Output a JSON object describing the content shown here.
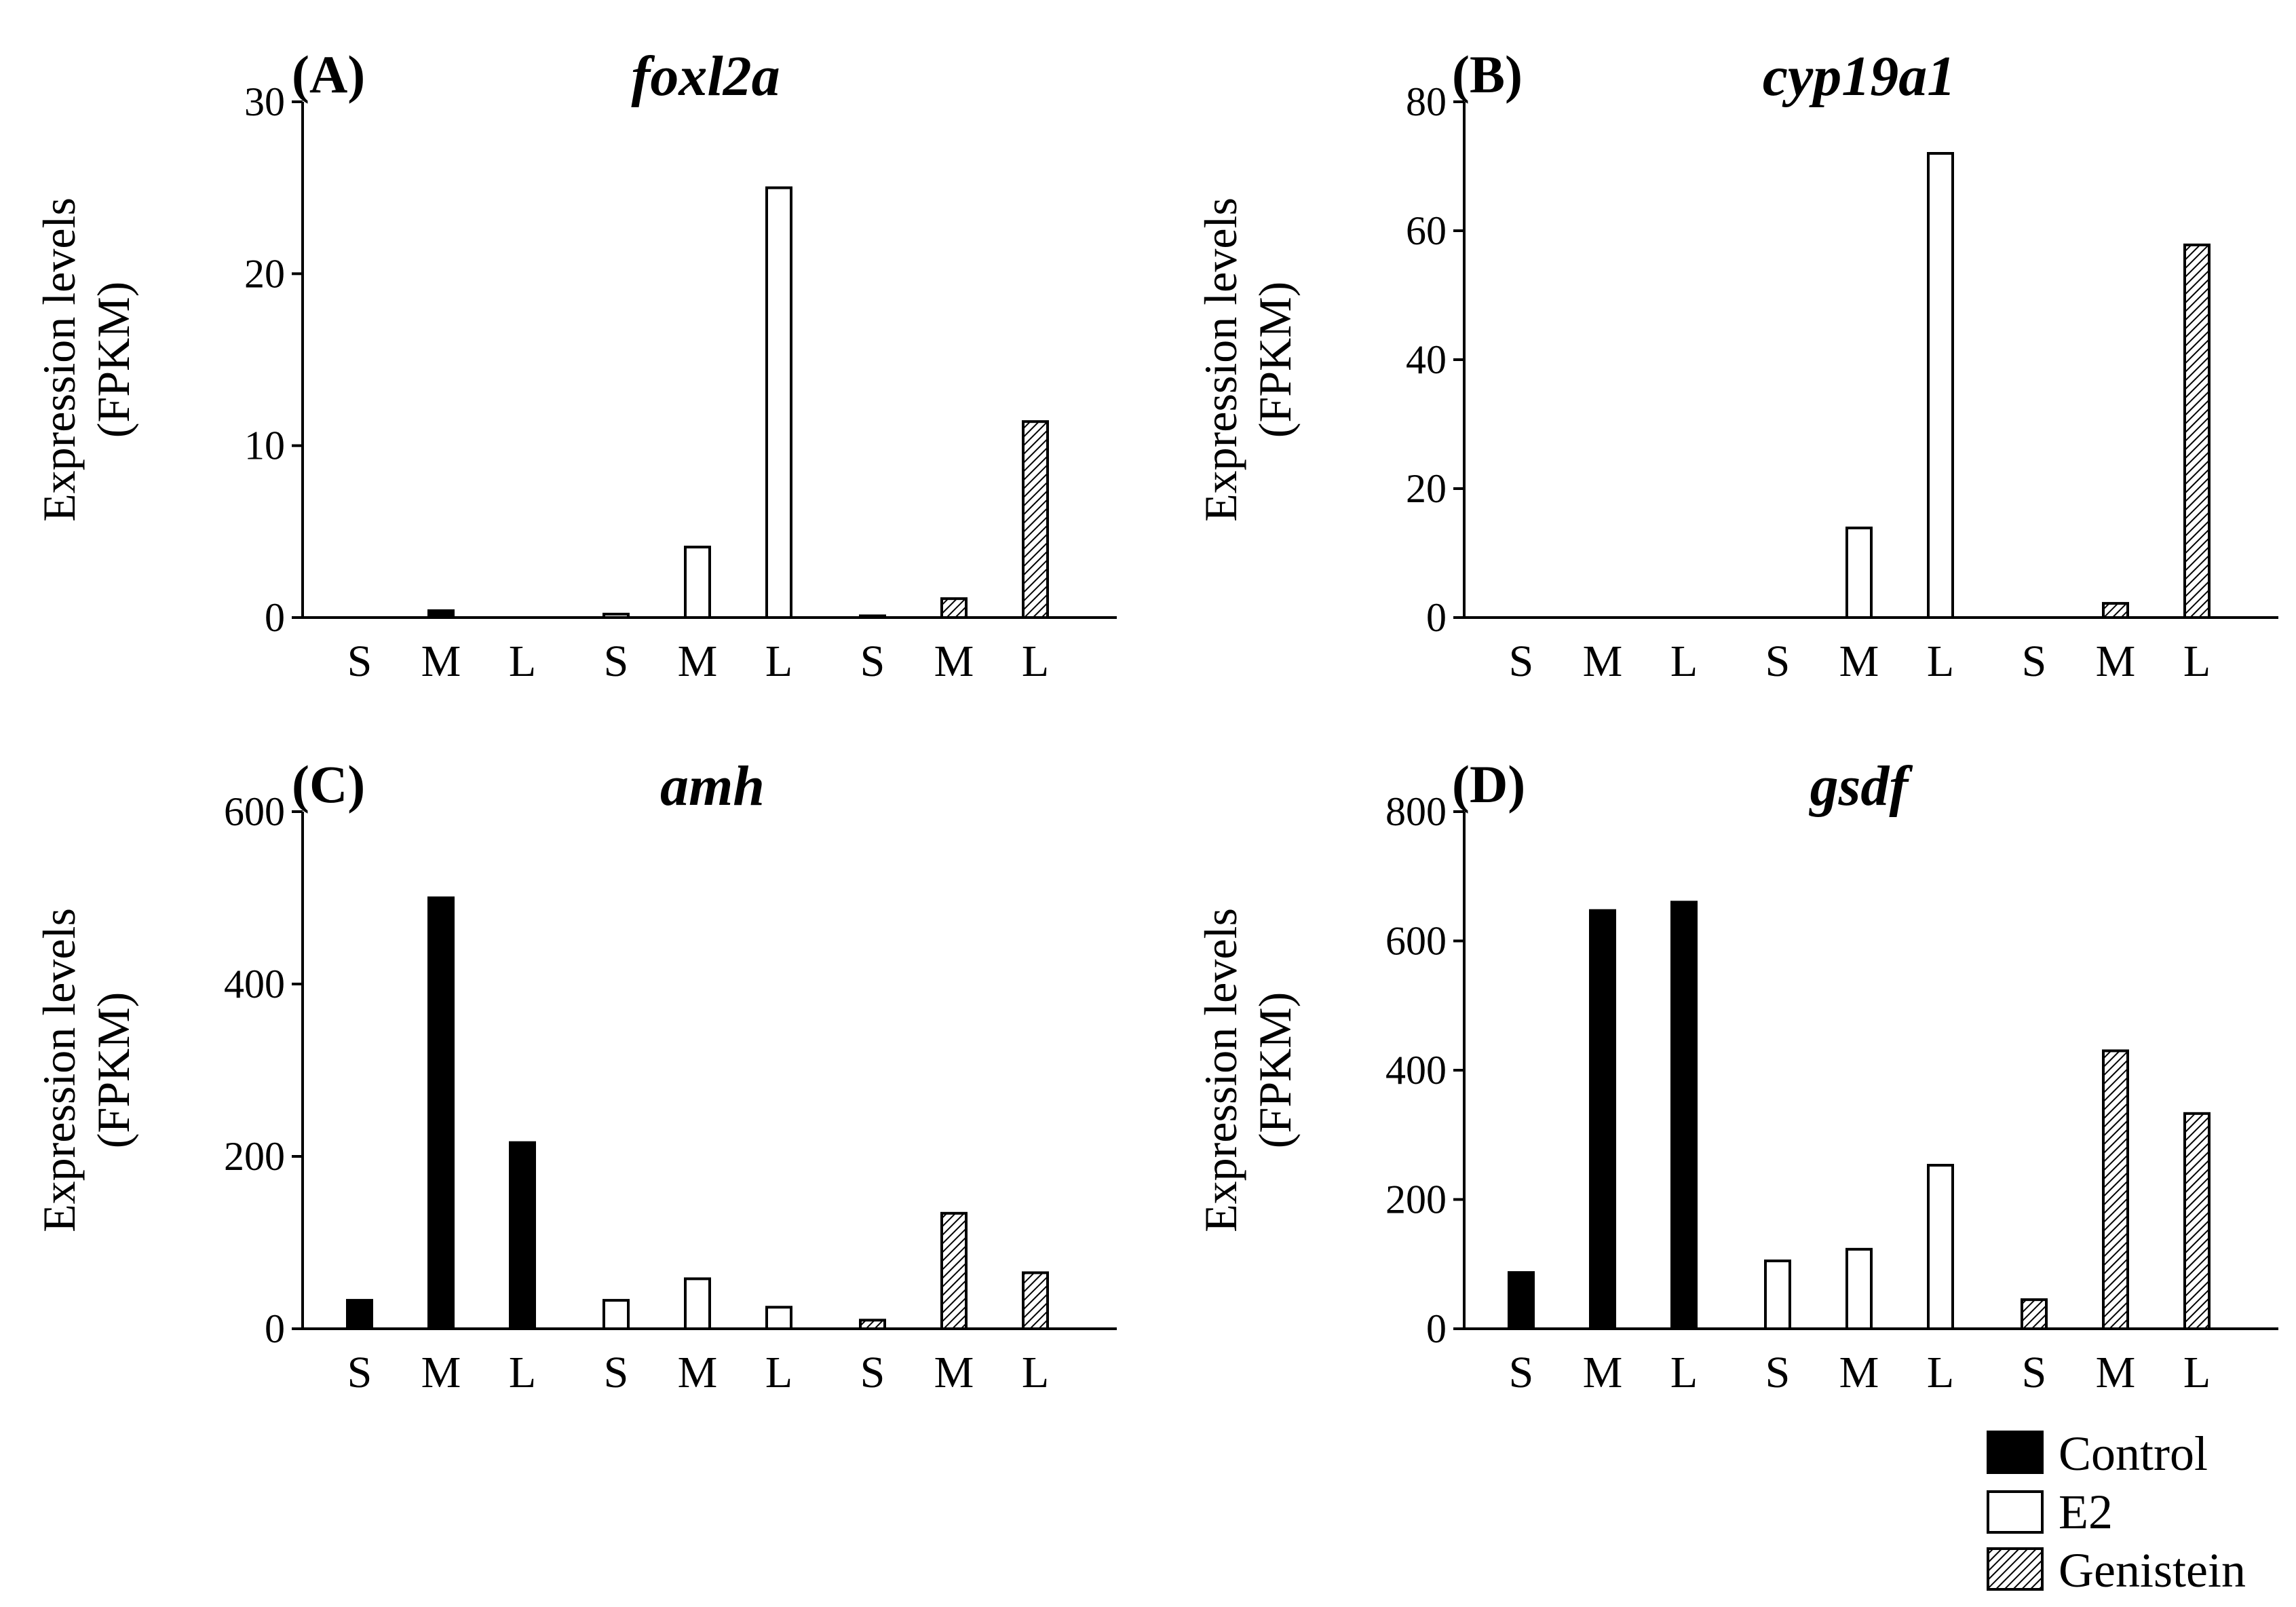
{
  "chart_data": [
    {
      "type": "bar",
      "panel": "(A)",
      "title": "foxl2a",
      "ylabel": [
        "Expression levels",
        "(FPKM)"
      ],
      "ylim": [
        0,
        30
      ],
      "yticks": [
        0,
        10,
        20,
        30
      ],
      "groups": [
        "Control",
        "E2",
        "Genistein"
      ],
      "categories": [
        "S",
        "M",
        "L"
      ],
      "series": [
        {
          "name": "Control",
          "values": [
            0,
            0.4,
            0
          ]
        },
        {
          "name": "E2",
          "values": [
            0.2,
            4.1,
            25
          ]
        },
        {
          "name": "Genistein",
          "values": [
            0.1,
            1.1,
            11.4
          ]
        }
      ]
    },
    {
      "type": "bar",
      "panel": "(B)",
      "title": "cyp19a1",
      "ylabel": [
        "Expression levels",
        "(FPKM)"
      ],
      "ylim": [
        0,
        80
      ],
      "yticks": [
        0,
        20,
        40,
        60,
        80
      ],
      "groups": [
        "Control",
        "E2",
        "Genistein"
      ],
      "categories": [
        "S",
        "M",
        "L"
      ],
      "series": [
        {
          "name": "Control",
          "values": [
            0,
            0,
            0
          ]
        },
        {
          "name": "E2",
          "values": [
            0,
            13.9,
            72
          ]
        },
        {
          "name": "Genistein",
          "values": [
            0,
            2.2,
            57.8
          ]
        }
      ]
    },
    {
      "type": "bar",
      "panel": "(C)",
      "title": "amh",
      "ylabel": [
        "Expression levels",
        "(FPKM)"
      ],
      "ylim": [
        0,
        600
      ],
      "yticks": [
        0,
        200,
        400,
        600
      ],
      "groups": [
        "Control",
        "E2",
        "Genistein"
      ],
      "categories": [
        "S",
        "M",
        "L"
      ],
      "series": [
        {
          "name": "Control",
          "values": [
            33,
            500,
            216
          ]
        },
        {
          "name": "E2",
          "values": [
            33,
            58,
            25
          ]
        },
        {
          "name": "Genistein",
          "values": [
            10,
            134,
            65
          ]
        }
      ]
    },
    {
      "type": "bar",
      "panel": "(D)",
      "title": "gsdf",
      "ylabel": [
        "Expression levels",
        "(FPKM)"
      ],
      "ylim": [
        0,
        800
      ],
      "yticks": [
        0,
        200,
        400,
        600,
        800
      ],
      "groups": [
        "Control",
        "E2",
        "Genistein"
      ],
      "categories": [
        "S",
        "M",
        "L"
      ],
      "series": [
        {
          "name": "Control",
          "values": [
            87,
            647,
            660
          ]
        },
        {
          "name": "E2",
          "values": [
            105,
            123,
            253
          ]
        },
        {
          "name": "Genistein",
          "values": [
            45,
            430,
            333
          ]
        }
      ]
    }
  ],
  "legend": {
    "position": "bottom-right",
    "items": [
      {
        "label": "Control",
        "fill": "solid",
        "color": "#000000"
      },
      {
        "label": "E2",
        "fill": "open",
        "color": "#ffffff"
      },
      {
        "label": "Genistein",
        "fill": "hatched",
        "color": "#000000"
      }
    ]
  }
}
